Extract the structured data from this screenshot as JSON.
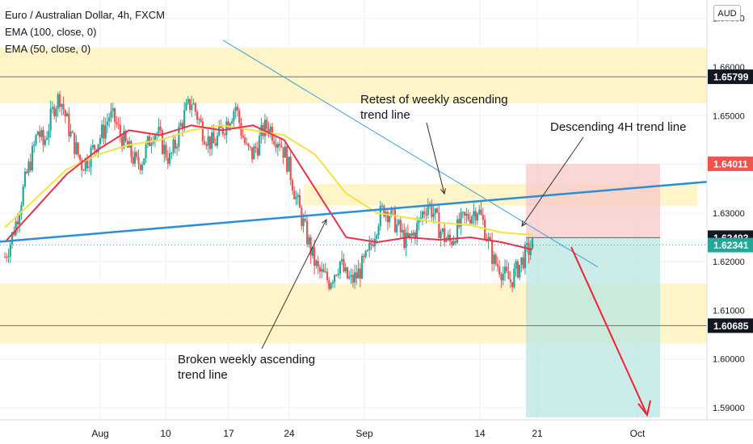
{
  "legend": {
    "title": "Euro / Australian Dollar, 4h, FXCM",
    "ema100": "EMA (100, close, 0)",
    "ema50": "EMA (50, close, 0)"
  },
  "currency_badge": "AUD",
  "annotations": {
    "retest": [
      "Retest of weekly ascending",
      "trend line"
    ],
    "descending": [
      "Descending 4H trend line"
    ],
    "broken": [
      "Broken weekly ascending",
      "trend line"
    ]
  },
  "colors": {
    "up": "#26a69a",
    "down": "#ef5350",
    "ema100": "#f5e142",
    "ema50": "#e8324a",
    "weekly_trend": "#2a8fd6",
    "descending_trend": "#3aa1d8",
    "zone": "#fff4c2",
    "stop_zone": "#f8c8c8",
    "target_zone": "#b9e6e2",
    "arrow": "#ee2233"
  },
  "chart_data": {
    "type": "candlestick",
    "title": "Euro / Australian Dollar, 4h, FXCM",
    "x_ticks": [
      "Aug",
      "10",
      "17",
      "24",
      "Sep",
      "14",
      "21",
      "Oct"
    ],
    "y_ticks": [
      "1.59000",
      "1.60000",
      "1.61000",
      "1.62000",
      "1.63000",
      "1.64000",
      "1.65000",
      "1.66000",
      "1.67000"
    ],
    "ylim": [
      1.5875,
      1.6715
    ],
    "price_labels": [
      {
        "value": "1.65799",
        "price": 1.65799,
        "style": "dark"
      },
      {
        "value": "1.64011",
        "price": 1.64011,
        "style": "red"
      },
      {
        "value": "1.62493",
        "price": 1.62493,
        "style": "dark"
      },
      {
        "value": "1.62341",
        "price": 1.62341,
        "style": "teal"
      },
      {
        "value": "1.60685",
        "price": 1.60685,
        "style": "dark"
      }
    ],
    "horizontal_lines": [
      1.65799,
      1.60685
    ],
    "zones": [
      {
        "from": 1.6525,
        "to": 1.664,
        "label": "resistance zone"
      },
      {
        "from": 1.6032,
        "to": 1.6155,
        "label": "support zone"
      },
      {
        "from": 1.6315,
        "to": 1.636,
        "label": "retest zone"
      }
    ],
    "position": {
      "type": "short",
      "entry": 1.62493,
      "stop": 1.64011,
      "target": 1.588
    },
    "price_path": [
      1.621,
      1.624,
      1.628,
      1.633,
      1.638,
      1.642,
      1.647,
      1.644,
      1.648,
      1.652,
      1.654,
      1.65,
      1.646,
      1.643,
      1.64,
      1.641,
      1.643,
      1.645,
      1.647,
      1.65,
      1.649,
      1.646,
      1.644,
      1.642,
      1.64,
      1.641,
      1.644,
      1.647,
      1.646,
      1.643,
      1.641,
      1.644,
      1.648,
      1.651,
      1.653,
      1.65,
      1.647,
      1.645,
      1.644,
      1.646,
      1.648,
      1.65,
      1.652,
      1.647,
      1.643,
      1.642,
      1.644,
      1.647,
      1.648,
      1.646,
      1.645,
      1.642,
      1.638,
      1.633,
      1.629,
      1.625,
      1.621,
      1.618,
      1.617,
      1.616,
      1.618,
      1.62,
      1.617,
      1.616,
      1.617,
      1.619,
      1.621,
      1.625,
      1.629,
      1.631,
      1.63,
      1.628,
      1.626,
      1.624,
      1.625,
      1.627,
      1.63,
      1.632,
      1.63,
      1.627,
      1.625,
      1.624,
      1.626,
      1.628,
      1.629,
      1.63,
      1.631,
      1.628,
      1.624,
      1.62,
      1.619,
      1.617,
      1.616,
      1.618,
      1.62,
      1.622,
      1.6235
    ],
    "ema100_path": [
      1.627,
      1.633,
      1.639,
      1.642,
      1.644,
      1.645,
      1.647,
      1.648,
      1.647,
      1.646,
      1.642,
      1.634,
      1.63,
      1.629,
      1.628,
      1.6275,
      1.626,
      1.6255
    ],
    "ema50_path": [
      1.624,
      1.631,
      1.638,
      1.643,
      1.647,
      1.646,
      1.648,
      1.647,
      1.648,
      1.645,
      1.635,
      1.625,
      1.624,
      1.625,
      1.6245,
      1.625,
      1.624,
      1.6225
    ],
    "weekly_ascending_trendline": {
      "start_price": 1.6241,
      "end_price": 1.6364
    },
    "descending_4h_trendline": {
      "start_price": 1.6655,
      "end_price": 1.6189
    },
    "projection_arrow": {
      "from_price": 1.623,
      "to_price": 1.5885
    }
  }
}
